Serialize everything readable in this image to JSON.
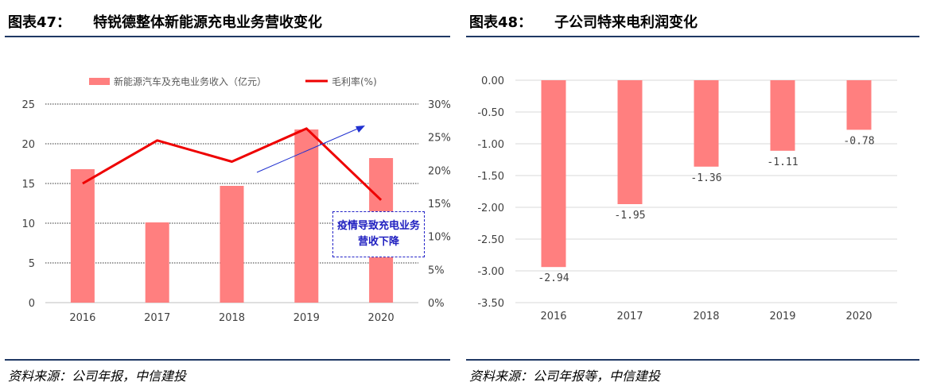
{
  "left": {
    "fig_label": "图表47：",
    "title": "特锐德整体新能源充电业务营收变化",
    "source": "资料来源：公司年报，中信建投",
    "annotation": "疫情导致充电业务营收下降",
    "colors": {
      "bar": "#ff7f7f",
      "line": "#ee0000",
      "arrow": "#2030d0",
      "annotation": "#2020c0"
    },
    "chart_data": {
      "type": "bar",
      "categories": [
        "2016",
        "2017",
        "2018",
        "2019",
        "2020"
      ],
      "series": [
        {
          "name": "新能源汽车及充电业务收入（亿元）",
          "type": "bar",
          "axis": "left",
          "values": [
            16.8,
            10.1,
            14.7,
            21.8,
            18.2
          ]
        },
        {
          "name": "毛利率(%)",
          "type": "line",
          "axis": "right",
          "values": [
            18.0,
            24.5,
            21.3,
            26.3,
            15.5
          ]
        }
      ],
      "ylim_left": [
        0,
        25
      ],
      "ylim_right": [
        0,
        30
      ],
      "yticks_left": [
        "25",
        "20",
        "15",
        "10",
        "5",
        "0"
      ],
      "yticks_right": [
        "30%",
        "25%",
        "20%",
        "15%",
        "10%",
        "5%",
        "0%"
      ],
      "grid": true,
      "legend": "top-center"
    }
  },
  "right": {
    "fig_label": "图表48：",
    "title": "子公司特来电利润变化",
    "source": "资料来源：公司年报等，中信建投",
    "colors": {
      "bar": "#ff7f7f"
    },
    "chart_data": {
      "type": "bar",
      "categories": [
        "2016",
        "2017",
        "2018",
        "2019",
        "2020"
      ],
      "values": [
        -2.94,
        -1.95,
        -1.36,
        -1.11,
        -0.78
      ],
      "data_labels": [
        "-2.94",
        "-1.95",
        "-1.36",
        "-1.11",
        "-0.78"
      ],
      "ylim": [
        -3.5,
        0
      ],
      "yticks": [
        "0.00",
        "-0.50",
        "-1.00",
        "-1.50",
        "-2.00",
        "-2.50",
        "-3.00",
        "-3.50"
      ],
      "grid": true
    }
  }
}
